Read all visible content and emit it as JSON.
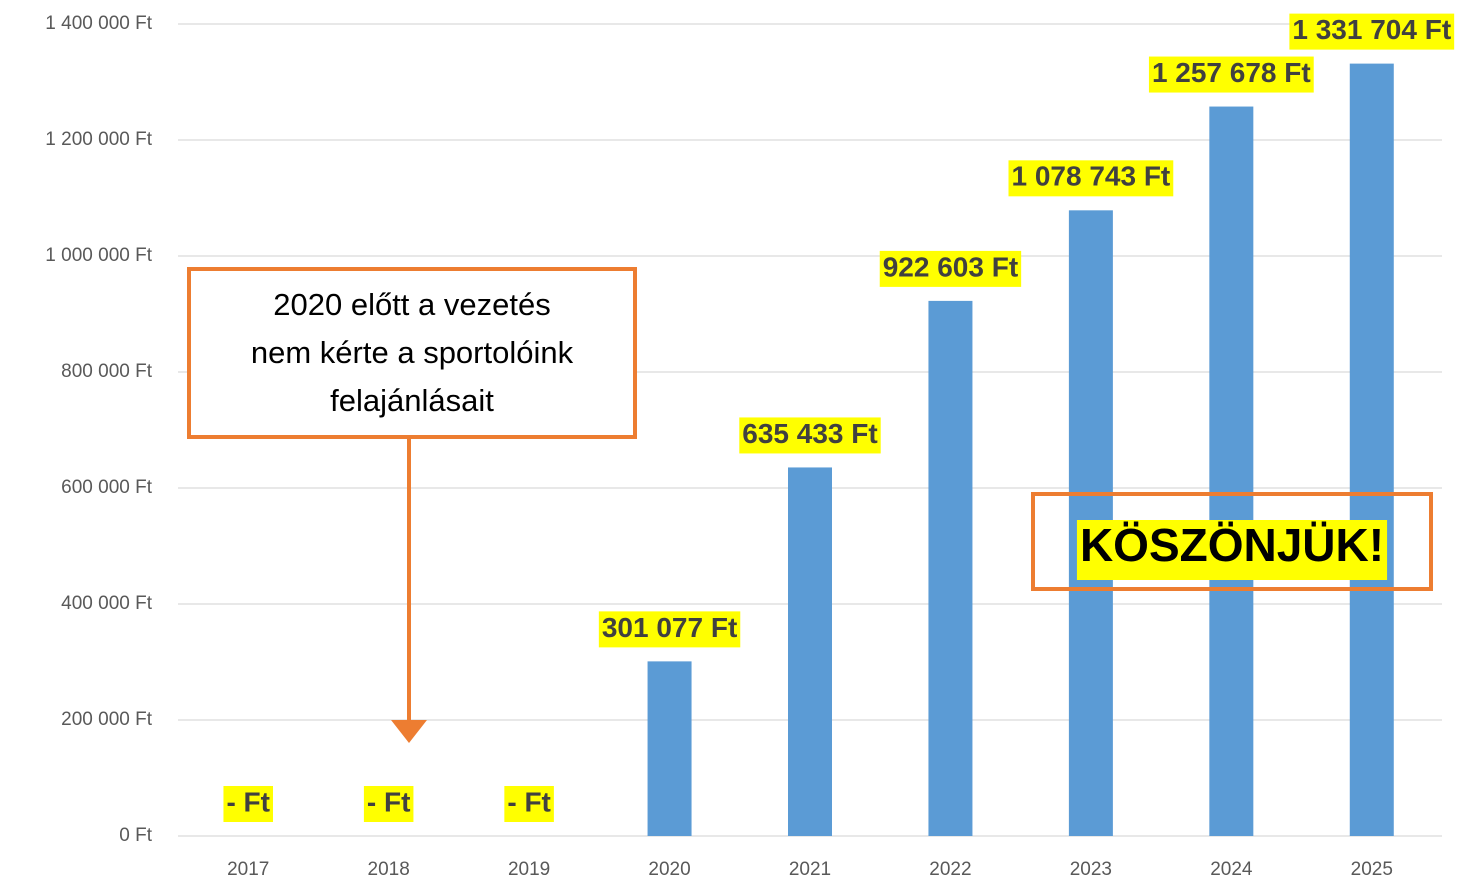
{
  "chart_data": {
    "type": "bar",
    "categories": [
      "2017",
      "2018",
      "2019",
      "2020",
      "2021",
      "2022",
      "2023",
      "2024",
      "2025"
    ],
    "values": [
      0,
      0,
      0,
      301077,
      635433,
      922603,
      1078743,
      1257678,
      1331704
    ],
    "value_labels": [
      "-   Ft",
      "-   Ft",
      "-   Ft",
      "301 077 Ft",
      "635 433 Ft",
      "922 603 Ft",
      "1 078 743 Ft",
      "1 257 678 Ft",
      "1 331 704 Ft"
    ],
    "color": "#5b9bd5",
    "ylim": [
      0,
      1400000
    ],
    "yticks": [
      {
        "value": 0,
        "label": "0 Ft"
      },
      {
        "value": 200000,
        "label": "200 000 Ft"
      },
      {
        "value": 400000,
        "label": "400 000 Ft"
      },
      {
        "value": 600000,
        "label": "600 000 Ft"
      },
      {
        "value": 800000,
        "label": "800 000 Ft"
      },
      {
        "value": 1000000,
        "label": "1 000 000 Ft"
      },
      {
        "value": 1200000,
        "label": "1 200 000 Ft"
      },
      {
        "value": 1400000,
        "label": "1 400 000 Ft"
      }
    ],
    "grid": true,
    "annotations": [
      {
        "lines": [
          "2020 előtt a vezetés",
          "nem kérte a sportolóink",
          "felajánlásait"
        ]
      },
      {
        "lines": [
          "KÖSZÖNJÜK!"
        ]
      }
    ]
  }
}
